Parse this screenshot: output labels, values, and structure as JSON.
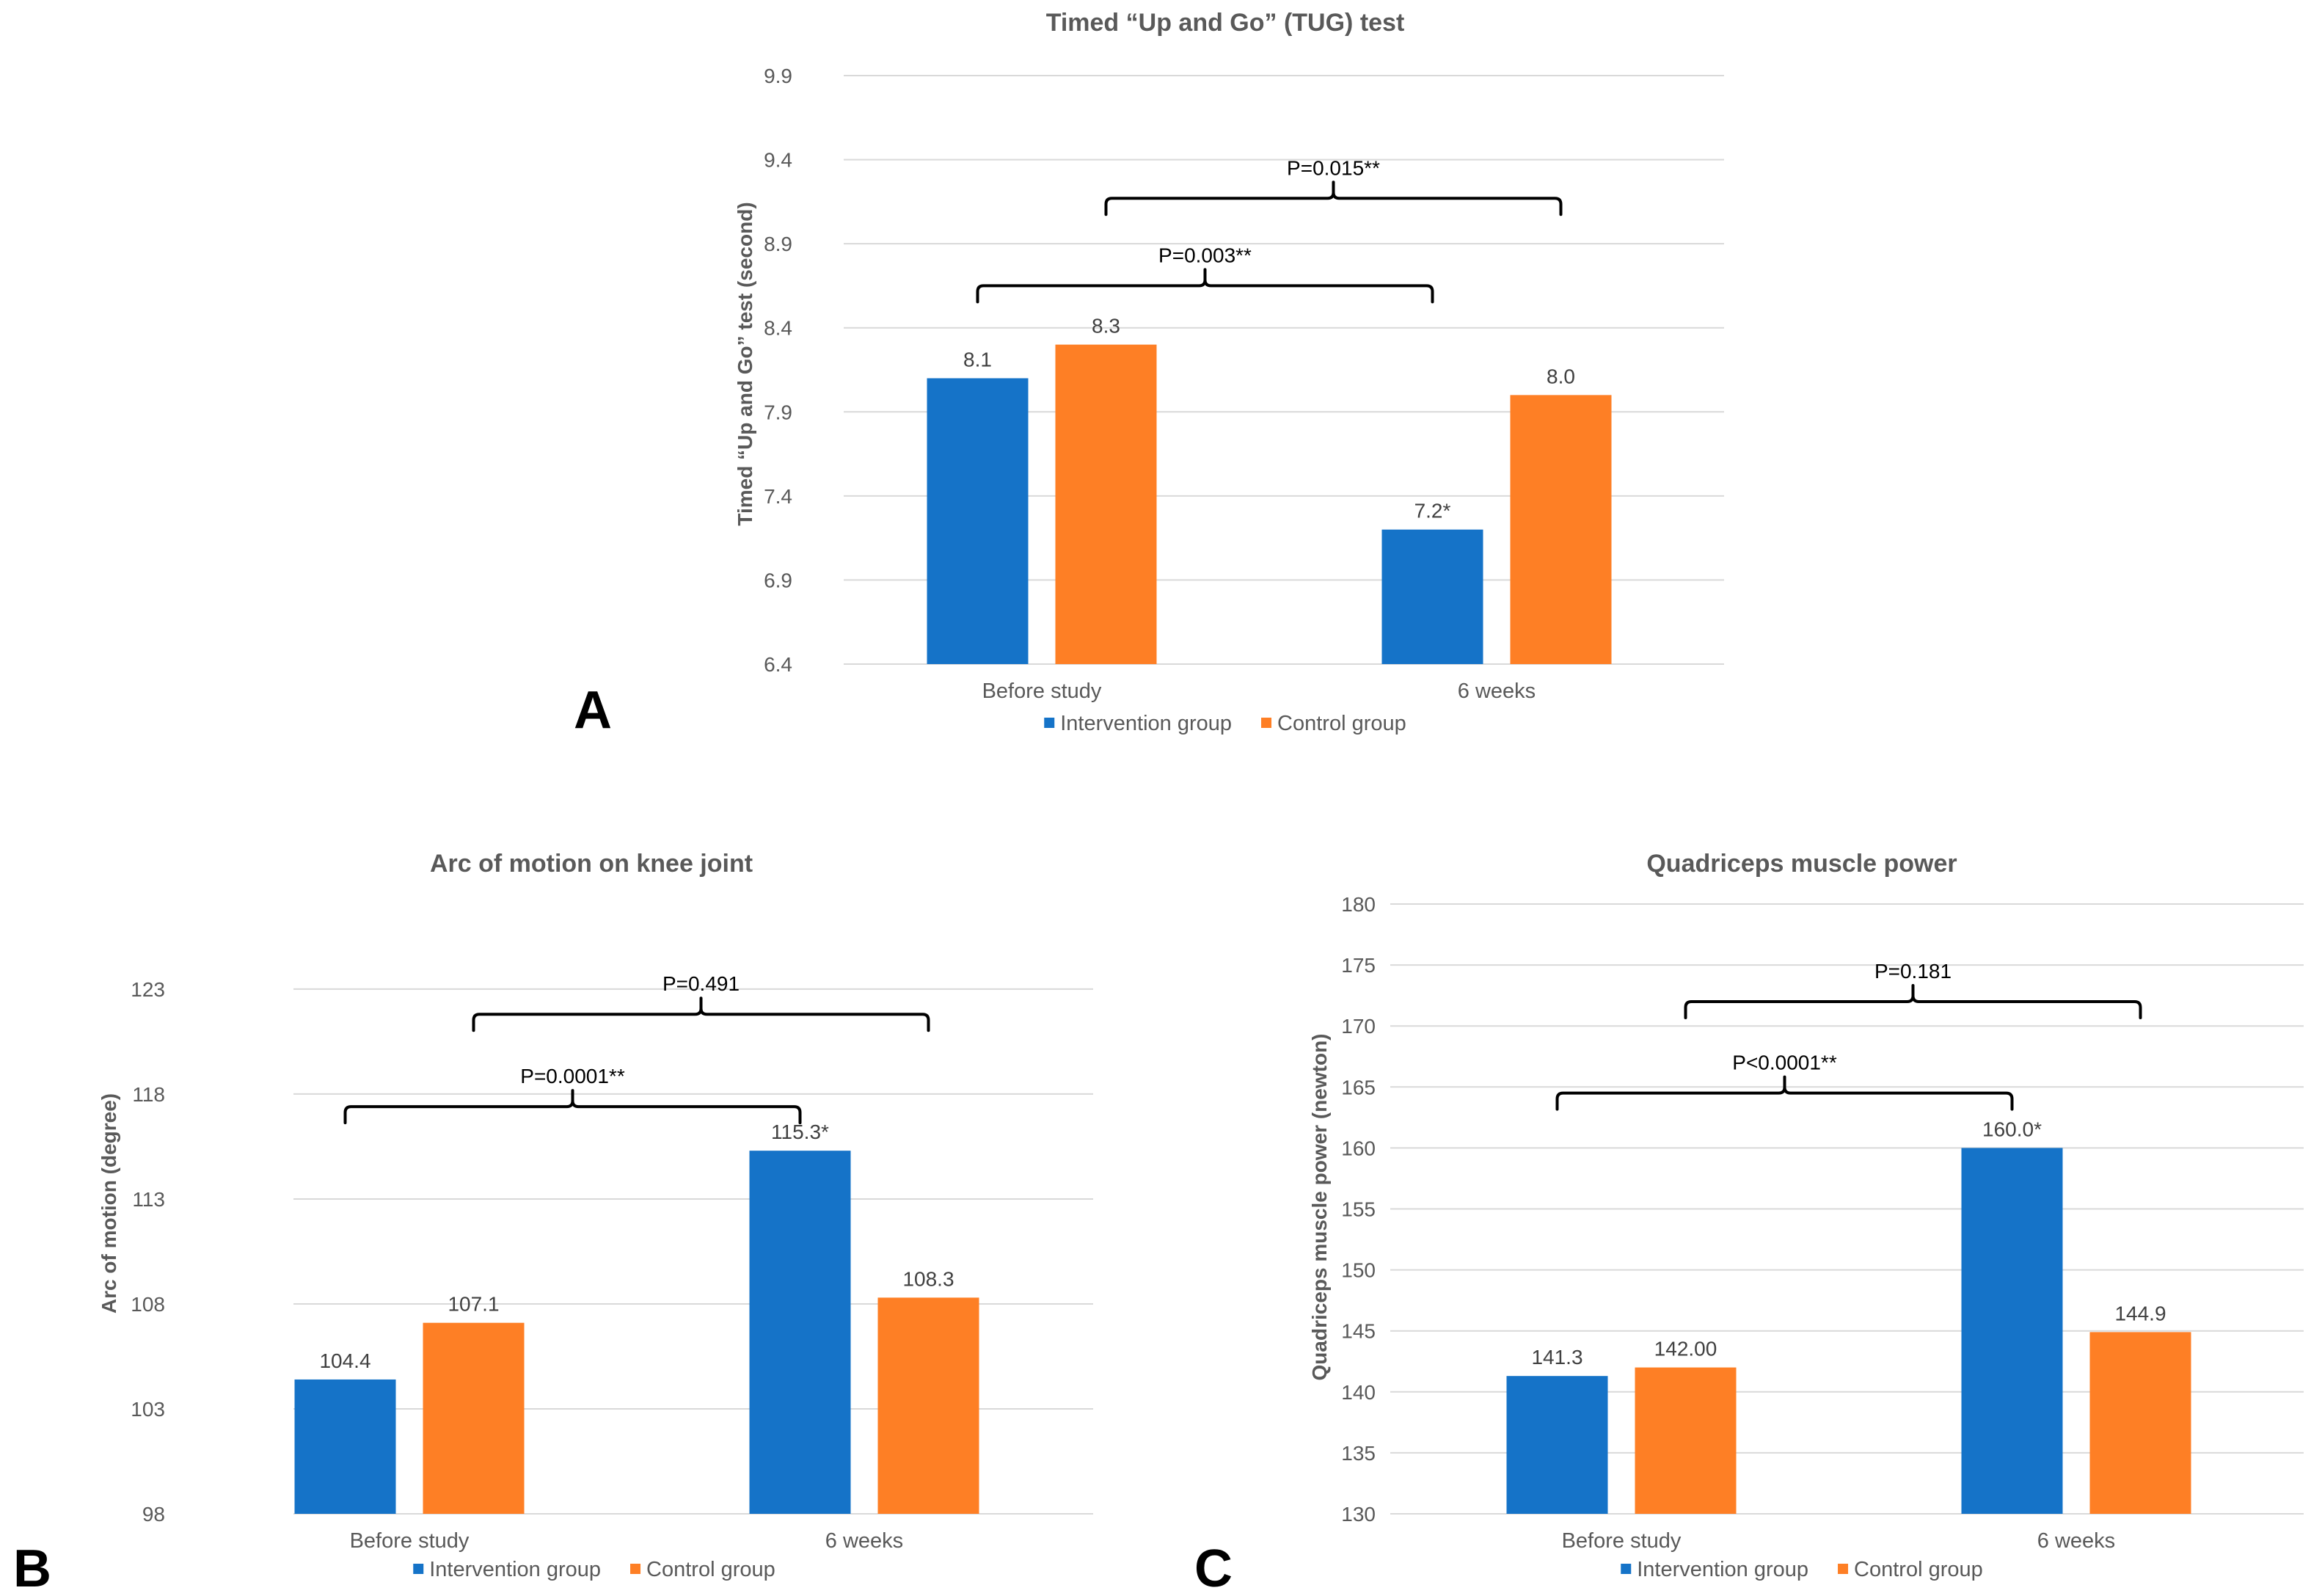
{
  "colors": {
    "intervention": "#1573c8",
    "control": "#fe7f25"
  },
  "chart_data": [
    {
      "type": "bar",
      "panel": "A",
      "title": "Timed “Up and Go” (TUG) test",
      "xlabel": "",
      "ylabel": "Timed “Up and Go” test (second)",
      "ylim": [
        6.4,
        9.9
      ],
      "yticks": [
        6.4,
        6.9,
        7.4,
        7.9,
        8.4,
        8.9,
        9.4,
        9.9
      ],
      "ytick_labels": [
        "6.4",
        "6.9",
        "7.4",
        "7.9",
        "8.4",
        "8.9",
        "9.4",
        "9.9"
      ],
      "grid": true,
      "legend_position": "bottom",
      "categories": [
        "Before study",
        "6 weeks"
      ],
      "series": [
        {
          "name": "Intervention group",
          "values": [
            8.1,
            7.2
          ],
          "labels": [
            "8.1",
            "7.2*"
          ]
        },
        {
          "name": "Control group",
          "values": [
            8.3,
            8.0
          ],
          "labels": [
            "8.3",
            "8.0"
          ]
        }
      ],
      "annotations": [
        {
          "text": "P=0.003**",
          "from": "Before study / Intervention group",
          "to": "6 weeks / Intervention group",
          "level": 8.65
        },
        {
          "text": "P=0.015**",
          "from": "Before study / Control group",
          "to": "6 weeks / Control group",
          "level": 9.17
        }
      ]
    },
    {
      "type": "bar",
      "panel": "B",
      "title": "Arc of motion on knee joint",
      "xlabel": "",
      "ylabel": "Arc of motion (degree)",
      "ylim": [
        98,
        124.5
      ],
      "yticks": [
        98,
        103,
        108,
        113,
        118,
        123
      ],
      "ytick_labels": [
        "98",
        "103",
        "108",
        "113",
        "118",
        "123"
      ],
      "grid": true,
      "legend_position": "bottom",
      "categories": [
        "Before study",
        "6 weeks"
      ],
      "series": [
        {
          "name": "Intervention group",
          "values": [
            104.4,
            115.3
          ],
          "labels": [
            "104.4",
            "115.3*"
          ]
        },
        {
          "name": "Control group",
          "values": [
            107.1,
            108.3
          ],
          "labels": [
            "107.1",
            "108.3"
          ]
        }
      ],
      "annotations": [
        {
          "text": "P=0.0001**",
          "from": "Before study / Intervention group",
          "to": "6 weeks / Intervention group",
          "level": 117.4
        },
        {
          "text": "P=0.491",
          "from": "Before study / Control group",
          "to": "6 weeks / Control group",
          "level": 121.8
        }
      ]
    },
    {
      "type": "bar",
      "panel": "C",
      "title": "Quadriceps muscle power",
      "xlabel": "",
      "ylabel": "Quadriceps muscle power (newton)",
      "ylim": [
        130,
        180
      ],
      "yticks": [
        130,
        135,
        140,
        145,
        150,
        155,
        160,
        165,
        170,
        175,
        180
      ],
      "ytick_labels": [
        "130",
        "135",
        "140",
        "145",
        "150",
        "155",
        "160",
        "165",
        "170",
        "175",
        "180"
      ],
      "grid": true,
      "legend_position": "bottom",
      "categories": [
        "Before study",
        "6 weeks"
      ],
      "series": [
        {
          "name": "Intervention group",
          "values": [
            141.3,
            160.0
          ],
          "labels": [
            "141.3",
            "160.0*"
          ]
        },
        {
          "name": "Control group",
          "values": [
            142.0,
            144.9
          ],
          "labels": [
            "142.00",
            "144.9"
          ]
        }
      ],
      "annotations": [
        {
          "text": "P<0.0001**",
          "from": "Before study / Intervention group",
          "to": "6 weeks / Intervention group",
          "level": 164.5
        },
        {
          "text": "P=0.181",
          "from": "Before study / Control group",
          "to": "6 weeks / Control group",
          "level": 172.0
        }
      ]
    }
  ]
}
